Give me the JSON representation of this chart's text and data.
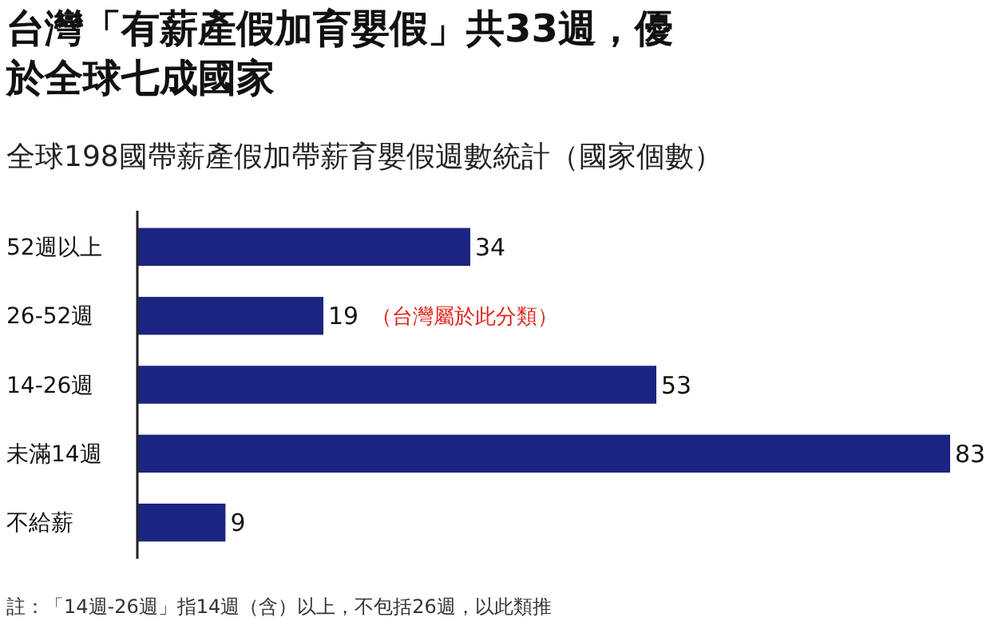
{
  "chart_data": {
    "type": "bar",
    "orientation": "horizontal",
    "title": "台灣「有薪產假加育嬰假」共33週，優於全球七成國家",
    "subtitle": "全球198國帶薪產假加帶薪育嬰假週數統計（國家個數）",
    "categories": [
      "52週以上",
      "26-52週",
      "14-26週",
      "未滿14週",
      "不給薪"
    ],
    "values": [
      34,
      19,
      53,
      83,
      9
    ],
    "color": "#1c2482",
    "data_labels": true,
    "tick_labels": "y",
    "annotations": [
      {
        "text": "（台灣屬於此分類）",
        "x": 19,
        "y": "26-52週"
      },
      "註：「14週-26週」指14週（含）以上，不包括26週，以此類推"
    ]
  }
}
